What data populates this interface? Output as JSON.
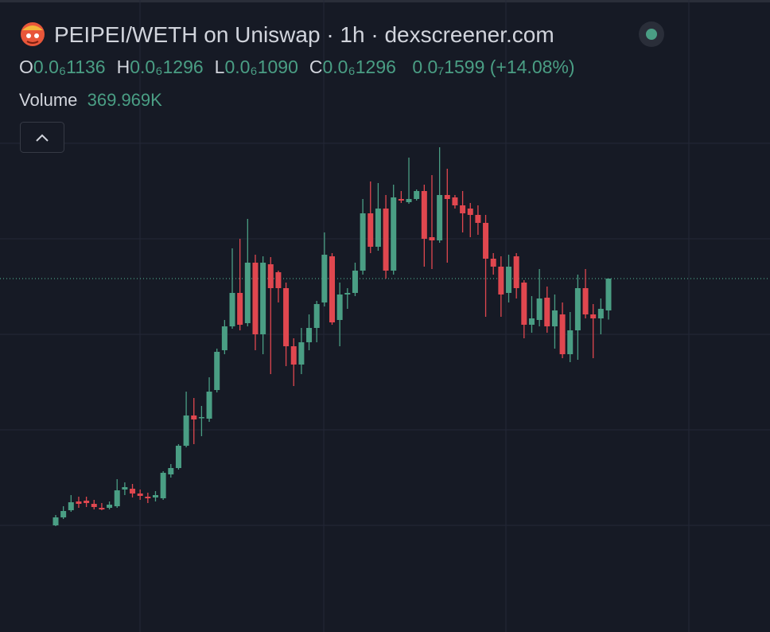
{
  "chart_data": {
    "type": "candlestick",
    "title": "PEIPEI/WETH on Uniswap · 1h · dexscreener.com",
    "ohlc": [
      {
        "key": "O",
        "value": "0.0₆1136"
      },
      {
        "key": "H",
        "value": "0.0₆1296"
      },
      {
        "key": "L",
        "value": "0.0₆1090"
      },
      {
        "key": "C",
        "value": "0.0₆1296"
      }
    ],
    "change": "0.0₇1599",
    "change_pct": "(+14.08%)",
    "volume_label": "Volume",
    "volume": "369.969K",
    "up_color": "#4a9e84",
    "down_color": "#e0474f",
    "ylim": [
      0,
      2.2e-07
    ],
    "open": [
      5.6e-09,
      9.6e-09,
      1.32e-08,
      1.76e-08,
      1.8e-08,
      1.64e-08,
      1.44e-08,
      1.44e-08,
      1.52e-08,
      2.36e-08,
      2.4e-08,
      2.16e-08,
      2e-08,
      1.96e-08,
      1.92e-08,
      3.12e-08,
      3.44e-08,
      4.56e-08,
      6.08e-08,
      5.96e-08,
      5.92e-08,
      7.36e-08,
      9.36e-08,
      1.056e-07,
      1.224e-07,
      1.072e-07,
      1.376e-07,
      1.016e-07,
      1.368e-07,
      1.328e-07,
      1.248e-07,
      9.56e-08,
      8.64e-08,
      9.76e-08,
      1.048e-07,
      1.176e-07,
      1.408e-07,
      1.088e-07,
      1.216e-07,
      1.224e-07,
      1.336e-07,
      1.624e-07,
      1.456e-07,
      1.648e-07,
      1.336e-07,
      1.696e-07,
      1.68e-07,
      1.696e-07,
      1.736e-07,
      1.504e-07,
      1.488e-07,
      1.716e-07,
      1.704e-07,
      1.664e-07,
      1.648e-07,
      1.616e-07,
      1.576e-07,
      1.396e-07,
      1.356e-07,
      1.224e-07,
      1.408e-07,
      1.276e-07,
      1.064e-07,
      1.088e-07,
      1.2e-07,
      1.056e-07,
      1.116e-07,
      9.16e-08,
      1.036e-07,
      1.248e-07,
      1.116e-07,
      1.096e-07,
      1.136e-07
    ],
    "high": [
      1.08e-08,
      1.52e-08,
      2.08e-08,
      2e-08,
      2e-08,
      1.84e-08,
      1.68e-08,
      1.76e-08,
      2.88e-08,
      2.72e-08,
      2.64e-08,
      2.36e-08,
      2.2e-08,
      2.28e-08,
      3.28e-08,
      3.64e-08,
      4.64e-08,
      7.28e-08,
      6.96e-08,
      6.56e-08,
      8e-08,
      9.44e-08,
      1.088e-07,
      1.448e-07,
      1.496e-07,
      1.596e-07,
      1.416e-07,
      1.408e-07,
      1.404e-07,
      1.336e-07,
      1.276e-07,
      9.96e-08,
      1.048e-07,
      1.116e-07,
      1.184e-07,
      1.528e-07,
      1.424e-07,
      1.276e-07,
      1.248e-07,
      1.376e-07,
      1.696e-07,
      1.784e-07,
      1.776e-07,
      1.716e-07,
      1.768e-07,
      1.736e-07,
      1.904e-07,
      1.744e-07,
      1.768e-07,
      1.816e-07,
      1.956e-07,
      1.848e-07,
      1.716e-07,
      1.736e-07,
      1.676e-07,
      1.664e-07,
      1.616e-07,
      1.424e-07,
      1.408e-07,
      1.416e-07,
      1.424e-07,
      1.288e-07,
      1.208e-07,
      1.344e-07,
      1.256e-07,
      1.216e-07,
      1.176e-07,
      1.128e-07,
      1.316e-07,
      1.344e-07,
      1.168e-07,
      1.196e-07,
      1.296e-07
    ],
    "low": [
      5.2e-09,
      8.8e-09,
      1.24e-08,
      1.44e-08,
      1.48e-08,
      1.36e-08,
      1.32e-08,
      1.36e-08,
      1.44e-08,
      2.08e-08,
      1.96e-08,
      1.84e-08,
      1.68e-08,
      1.76e-08,
      1.84e-08,
      2.96e-08,
      3.36e-08,
      4.48e-08,
      4.64e-08,
      5.04e-08,
      5.76e-08,
      7.24e-08,
      9.16e-08,
      1.044e-07,
      1.036e-07,
      1.056e-07,
      9.36e-08,
      9.16e-08,
      8.16e-08,
      1.176e-07,
      8.56e-08,
      7.56e-08,
      8.16e-08,
      9.36e-08,
      9.76e-08,
      1.156e-07,
      1.064e-07,
      9.56e-08,
      1.144e-07,
      1.208e-07,
      1.316e-07,
      1.424e-07,
      1.436e-07,
      1.296e-07,
      1.316e-07,
      1.676e-07,
      1.672e-07,
      1.688e-07,
      1.356e-07,
      1.344e-07,
      1.476e-07,
      1.376e-07,
      1.648e-07,
      1.528e-07,
      1.504e-07,
      1.516e-07,
      1.104e-07,
      1.316e-07,
      1.104e-07,
      1.176e-07,
      1.196e-07,
      9.96e-08,
      1.024e-07,
      1.056e-07,
      1.024e-07,
      9.44e-08,
      8.96e-08,
      8.76e-08,
      8.88e-08,
      1.096e-07,
      8.96e-08,
      1.016e-07,
      1.09e-07
    ],
    "close": [
      9.6e-09,
      1.28e-08,
      1.72e-08,
      1.64e-08,
      1.68e-08,
      1.48e-08,
      1.36e-08,
      1.6e-08,
      2.32e-08,
      2.48e-08,
      2.16e-08,
      2.04e-08,
      1.92e-08,
      2.08e-08,
      3.2e-08,
      3.44e-08,
      4.56e-08,
      6.08e-08,
      5.88e-08,
      6e-08,
      7.28e-08,
      9.28e-08,
      1.056e-07,
      1.224e-07,
      1.064e-07,
      1.376e-07,
      1.016e-07,
      1.376e-07,
      1.248e-07,
      1.248e-07,
      9.56e-08,
      8.64e-08,
      9.76e-08,
      1.048e-07,
      1.168e-07,
      1.416e-07,
      1.076e-07,
      1.216e-07,
      1.224e-07,
      1.336e-07,
      1.624e-07,
      1.456e-07,
      1.648e-07,
      1.336e-07,
      1.704e-07,
      1.688e-07,
      1.696e-07,
      1.736e-07,
      1.496e-07,
      1.488e-07,
      1.716e-07,
      1.696e-07,
      1.664e-07,
      1.624e-07,
      1.616e-07,
      1.576e-07,
      1.396e-07,
      1.356e-07,
      1.216e-07,
      1.356e-07,
      1.248e-07,
      1.064e-07,
      1.096e-07,
      1.196e-07,
      1.056e-07,
      1.136e-07,
      9.16e-08,
      1.036e-07,
      1.248e-07,
      1.116e-07,
      1.096e-07,
      1.144e-07,
      1.296e-07
    ]
  }
}
